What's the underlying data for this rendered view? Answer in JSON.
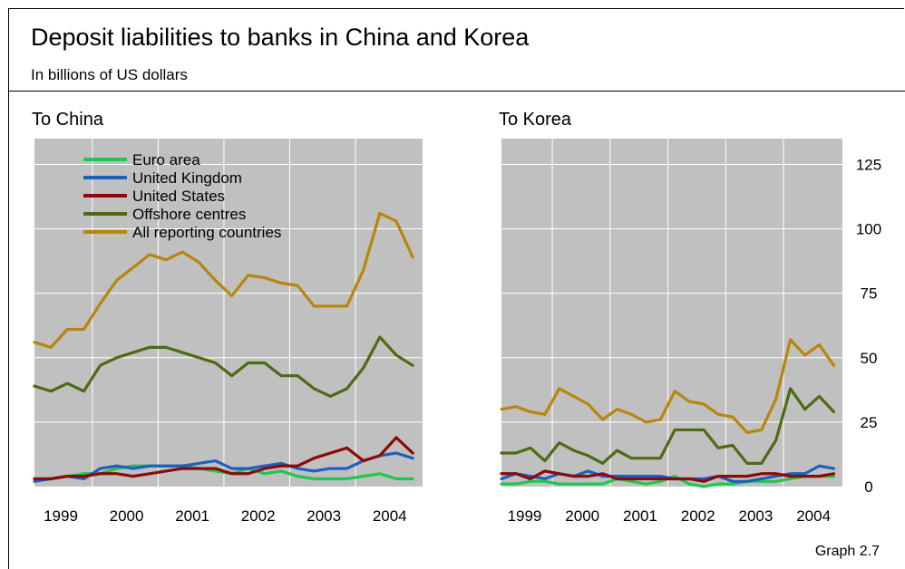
{
  "title": "Deposit liabilities to banks in China and Korea",
  "subtitle": "In billions of US dollars",
  "footer": "Graph 2.7",
  "colors": {
    "euro_area": "#1ec84b",
    "united_kingdom": "#1f5fbf",
    "united_states": "#8b0a0a",
    "offshore_centres": "#4d6b12",
    "all_reporting": "#b8860b",
    "plot_bg": "#c0c0c0",
    "grid": "#ffffff"
  },
  "chart_data": [
    {
      "type": "line",
      "title": "To China",
      "x_tick_labels": [
        "1999",
        "2000",
        "2001",
        "2002",
        "2003",
        "2004"
      ],
      "x_range": [
        1999.0,
        2004.9
      ],
      "ylim": [
        0,
        135
      ],
      "grid": true,
      "legend": "top-left",
      "x": [
        1999.0,
        1999.25,
        1999.5,
        1999.75,
        2000.0,
        2000.25,
        2000.5,
        2000.75,
        2001.0,
        2001.25,
        2001.5,
        2001.75,
        2002.0,
        2002.25,
        2002.5,
        2002.75,
        2003.0,
        2003.25,
        2003.5,
        2003.75,
        2004.0,
        2004.25,
        2004.5,
        2004.75
      ],
      "series": [
        {
          "name": "Euro area",
          "color_key": "euro_area",
          "values": [
            3,
            3,
            4,
            5,
            5,
            7,
            8,
            8,
            8,
            8,
            7,
            6,
            5,
            7,
            5,
            6,
            4,
            3,
            3,
            3,
            4,
            5,
            3,
            3
          ]
        },
        {
          "name": "United Kingdom",
          "color_key": "united_kingdom",
          "values": [
            2,
            3,
            4,
            3,
            7,
            8,
            7,
            8,
            8,
            8,
            9,
            10,
            7,
            7,
            8,
            9,
            7,
            6,
            7,
            7,
            10,
            12,
            13,
            11
          ]
        },
        {
          "name": "United States",
          "color_key": "united_states",
          "values": [
            3,
            3,
            4,
            4,
            5,
            5,
            4,
            5,
            6,
            7,
            7,
            7,
            5,
            5,
            7,
            8,
            8,
            11,
            13,
            15,
            10,
            12,
            19,
            13
          ]
        },
        {
          "name": "Offshore centres",
          "color_key": "offshore_centres",
          "values": [
            39,
            37,
            40,
            37,
            47,
            50,
            52,
            54,
            54,
            52,
            50,
            48,
            43,
            48,
            48,
            43,
            43,
            38,
            35,
            38,
            46,
            58,
            51,
            47
          ]
        },
        {
          "name": "All reporting countries",
          "color_key": "all_reporting",
          "values": [
            56,
            54,
            61,
            61,
            71,
            80,
            85,
            90,
            88,
            91,
            87,
            80,
            74,
            82,
            81,
            79,
            78,
            70,
            70,
            70,
            84,
            106,
            103,
            89
          ]
        }
      ]
    },
    {
      "type": "line",
      "title": "To Korea",
      "x_tick_labels": [
        "1999",
        "2000",
        "2001",
        "2002",
        "2003",
        "2004"
      ],
      "x_range": [
        1999.0,
        2004.9
      ],
      "ylim": [
        0,
        135
      ],
      "y_ticks": [
        0,
        25,
        50,
        75,
        100,
        125
      ],
      "grid": true,
      "x": [
        1999.0,
        1999.25,
        1999.5,
        1999.75,
        2000.0,
        2000.25,
        2000.5,
        2000.75,
        2001.0,
        2001.25,
        2001.5,
        2001.75,
        2002.0,
        2002.25,
        2002.5,
        2002.75,
        2003.0,
        2003.25,
        2003.5,
        2003.75,
        2004.0,
        2004.25,
        2004.5,
        2004.75
      ],
      "series": [
        {
          "name": "Euro area",
          "color_key": "euro_area",
          "values": [
            1,
            1,
            2,
            2,
            1,
            1,
            1,
            1,
            3,
            2,
            1,
            2,
            4,
            1,
            0,
            1,
            1,
            2,
            2,
            2,
            3,
            4,
            4,
            4
          ]
        },
        {
          "name": "United Kingdom",
          "color_key": "united_kingdom",
          "values": [
            3,
            5,
            4,
            3,
            5,
            4,
            6,
            4,
            4,
            4,
            4,
            4,
            3,
            3,
            3,
            4,
            2,
            2,
            3,
            4,
            5,
            5,
            8,
            7
          ]
        },
        {
          "name": "United States",
          "color_key": "united_states",
          "values": [
            5,
            5,
            3,
            6,
            5,
            4,
            4,
            5,
            3,
            3,
            3,
            3,
            3,
            3,
            2,
            4,
            4,
            4,
            5,
            5,
            4,
            4,
            4,
            5
          ]
        },
        {
          "name": "Offshore centres",
          "color_key": "offshore_centres",
          "values": [
            13,
            13,
            15,
            10,
            17,
            14,
            12,
            9,
            14,
            11,
            11,
            11,
            22,
            22,
            22,
            15,
            16,
            9,
            9,
            18,
            38,
            30,
            35,
            29
          ]
        },
        {
          "name": "All reporting countries",
          "color_key": "all_reporting",
          "values": [
            30,
            31,
            29,
            28,
            38,
            35,
            32,
            26,
            30,
            28,
            25,
            26,
            37,
            33,
            32,
            28,
            27,
            21,
            22,
            34,
            57,
            51,
            55,
            47
          ]
        }
      ]
    }
  ]
}
